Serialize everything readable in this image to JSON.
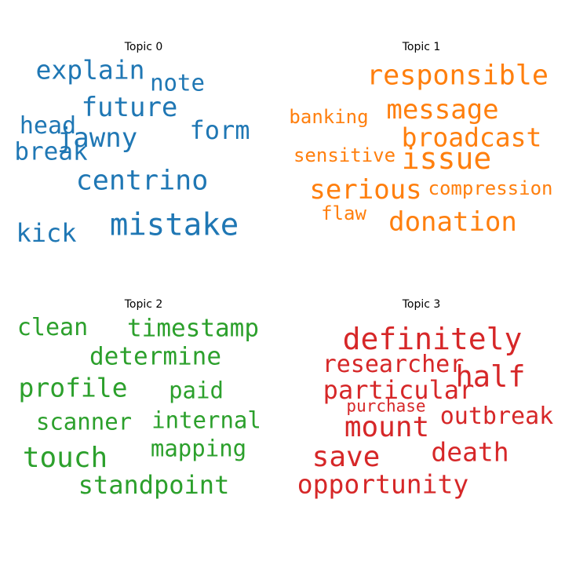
{
  "chart_data": [
    {
      "type": "wordcloud",
      "title": "Topic 0",
      "color": "#1f77b4",
      "words": [
        "explain",
        "note",
        "future",
        "head",
        "jawny",
        "form",
        "break",
        "centrino",
        "mistake",
        "kick"
      ]
    },
    {
      "type": "wordcloud",
      "title": "Topic 1",
      "color": "#ff7f0e",
      "words": [
        "responsible",
        "banking",
        "message",
        "broadcast",
        "sensitive",
        "issue",
        "serious",
        "compression",
        "flaw",
        "donation"
      ]
    },
    {
      "type": "wordcloud",
      "title": "Topic 2",
      "color": "#2ca02c",
      "words": [
        "clean",
        "timestamp",
        "determine",
        "profile",
        "paid",
        "scanner",
        "internal",
        "touch",
        "mapping",
        "standpoint"
      ]
    },
    {
      "type": "wordcloud",
      "title": "Topic 3",
      "color": "#d62728",
      "words": [
        "definitely",
        "researcher",
        "half",
        "particular",
        "purchase",
        "mount",
        "outbreak",
        "save",
        "death",
        "opportunity"
      ]
    }
  ]
}
